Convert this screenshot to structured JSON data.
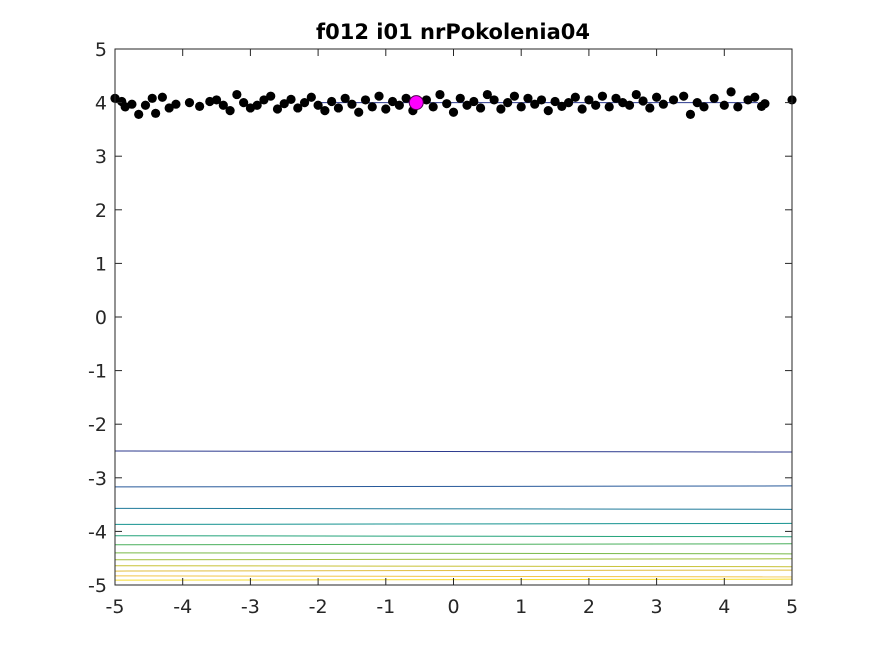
{
  "chart_data": {
    "type": "scatter",
    "title": "f012 i01 nrPokolenia04",
    "xlim": [
      -5,
      5
    ],
    "ylim": [
      -5,
      5
    ],
    "xticks": [
      -5,
      -4,
      -3,
      -2,
      -1,
      0,
      1,
      2,
      3,
      4,
      5
    ],
    "yticks": [
      -5,
      -4,
      -3,
      -2,
      -1,
      0,
      1,
      2,
      3,
      4,
      5
    ],
    "grid": false,
    "colors": {
      "points": "#000000",
      "best": "#ff00ff",
      "axis": "#262626"
    },
    "contours": [
      {
        "y": -2.5,
        "color": "#2c3a8e"
      },
      {
        "y": -3.17,
        "color": "#27599a"
      },
      {
        "y": -3.57,
        "color": "#1f7a9a"
      },
      {
        "y": -3.87,
        "color": "#14928f"
      },
      {
        "y": -4.08,
        "color": "#23a37a"
      },
      {
        "y": -4.25,
        "color": "#4aaf5c"
      },
      {
        "y": -4.4,
        "color": "#78b948"
      },
      {
        "y": -4.53,
        "color": "#a3bf3c"
      },
      {
        "y": -4.64,
        "color": "#c8c237"
      },
      {
        "y": -4.74,
        "color": "#e2bd3e"
      },
      {
        "y": -4.83,
        "color": "#f2c547"
      },
      {
        "y": -4.91,
        "color": "#f6dc2e"
      }
    ],
    "reference_line": {
      "y": 4.0,
      "x_start": -2.0,
      "x_end": 4.5,
      "color": "#2c3a8e"
    },
    "best": {
      "x": -0.55,
      "y": 4.0
    },
    "points": [
      {
        "x": -5.0,
        "y": 4.08
      },
      {
        "x": -4.9,
        "y": 4.02
      },
      {
        "x": -4.85,
        "y": 3.92
      },
      {
        "x": -4.75,
        "y": 3.97
      },
      {
        "x": -4.65,
        "y": 3.78
      },
      {
        "x": -4.55,
        "y": 3.95
      },
      {
        "x": -4.45,
        "y": 4.08
      },
      {
        "x": -4.4,
        "y": 3.8
      },
      {
        "x": -4.3,
        "y": 4.1
      },
      {
        "x": -4.2,
        "y": 3.9
      },
      {
        "x": -4.1,
        "y": 3.97
      },
      {
        "x": -3.9,
        "y": 4.0
      },
      {
        "x": -3.75,
        "y": 3.93
      },
      {
        "x": -3.6,
        "y": 4.02
      },
      {
        "x": -3.5,
        "y": 4.05
      },
      {
        "x": -3.4,
        "y": 3.95
      },
      {
        "x": -3.3,
        "y": 3.85
      },
      {
        "x": -3.2,
        "y": 4.15
      },
      {
        "x": -3.1,
        "y": 4.0
      },
      {
        "x": -3.0,
        "y": 3.9
      },
      {
        "x": -2.9,
        "y": 3.95
      },
      {
        "x": -2.8,
        "y": 4.05
      },
      {
        "x": -2.7,
        "y": 4.12
      },
      {
        "x": -2.6,
        "y": 3.88
      },
      {
        "x": -2.5,
        "y": 3.98
      },
      {
        "x": -2.4,
        "y": 4.06
      },
      {
        "x": -2.3,
        "y": 3.9
      },
      {
        "x": -2.2,
        "y": 4.0
      },
      {
        "x": -2.1,
        "y": 4.1
      },
      {
        "x": -2.0,
        "y": 3.95
      },
      {
        "x": -1.9,
        "y": 3.85
      },
      {
        "x": -1.8,
        "y": 4.02
      },
      {
        "x": -1.7,
        "y": 3.9
      },
      {
        "x": -1.6,
        "y": 4.08
      },
      {
        "x": -1.5,
        "y": 3.97
      },
      {
        "x": -1.4,
        "y": 3.82
      },
      {
        "x": -1.3,
        "y": 4.05
      },
      {
        "x": -1.2,
        "y": 3.92
      },
      {
        "x": -1.1,
        "y": 4.12
      },
      {
        "x": -1.0,
        "y": 3.88
      },
      {
        "x": -0.9,
        "y": 4.02
      },
      {
        "x": -0.8,
        "y": 3.95
      },
      {
        "x": -0.7,
        "y": 4.08
      },
      {
        "x": -0.6,
        "y": 3.85
      },
      {
        "x": -0.4,
        "y": 4.05
      },
      {
        "x": -0.3,
        "y": 3.92
      },
      {
        "x": -0.2,
        "y": 4.15
      },
      {
        "x": -0.1,
        "y": 3.98
      },
      {
        "x": 0.0,
        "y": 3.82
      },
      {
        "x": 0.1,
        "y": 4.08
      },
      {
        "x": 0.2,
        "y": 3.95
      },
      {
        "x": 0.3,
        "y": 4.02
      },
      {
        "x": 0.4,
        "y": 3.9
      },
      {
        "x": 0.5,
        "y": 4.15
      },
      {
        "x": 0.6,
        "y": 4.05
      },
      {
        "x": 0.7,
        "y": 3.88
      },
      {
        "x": 0.8,
        "y": 4.0
      },
      {
        "x": 0.9,
        "y": 4.12
      },
      {
        "x": 1.0,
        "y": 3.92
      },
      {
        "x": 1.1,
        "y": 4.08
      },
      {
        "x": 1.2,
        "y": 3.97
      },
      {
        "x": 1.3,
        "y": 4.05
      },
      {
        "x": 1.4,
        "y": 3.85
      },
      {
        "x": 1.5,
        "y": 4.02
      },
      {
        "x": 1.6,
        "y": 3.93
      },
      {
        "x": 1.7,
        "y": 4.0
      },
      {
        "x": 1.8,
        "y": 4.1
      },
      {
        "x": 1.9,
        "y": 3.88
      },
      {
        "x": 2.0,
        "y": 4.05
      },
      {
        "x": 2.1,
        "y": 3.95
      },
      {
        "x": 2.2,
        "y": 4.12
      },
      {
        "x": 2.3,
        "y": 3.92
      },
      {
        "x": 2.4,
        "y": 4.08
      },
      {
        "x": 2.5,
        "y": 4.0
      },
      {
        "x": 2.6,
        "y": 3.95
      },
      {
        "x": 2.7,
        "y": 4.15
      },
      {
        "x": 2.8,
        "y": 4.03
      },
      {
        "x": 2.9,
        "y": 3.9
      },
      {
        "x": 3.0,
        "y": 4.1
      },
      {
        "x": 3.1,
        "y": 3.97
      },
      {
        "x": 3.25,
        "y": 4.05
      },
      {
        "x": 3.4,
        "y": 4.12
      },
      {
        "x": 3.5,
        "y": 3.78
      },
      {
        "x": 3.6,
        "y": 4.0
      },
      {
        "x": 3.7,
        "y": 3.92
      },
      {
        "x": 3.85,
        "y": 4.08
      },
      {
        "x": 4.0,
        "y": 3.95
      },
      {
        "x": 4.1,
        "y": 4.2
      },
      {
        "x": 4.2,
        "y": 3.92
      },
      {
        "x": 4.35,
        "y": 4.05
      },
      {
        "x": 4.45,
        "y": 4.1
      },
      {
        "x": 4.55,
        "y": 3.93
      },
      {
        "x": 4.6,
        "y": 3.98
      },
      {
        "x": 5.0,
        "y": 4.05
      }
    ]
  }
}
